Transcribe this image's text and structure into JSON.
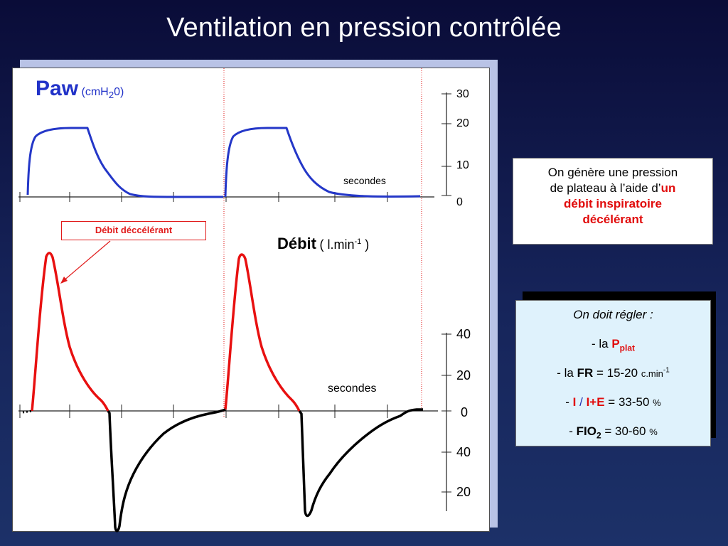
{
  "slide": {
    "title": "Ventilation en pression contrôlée"
  },
  "pressure_panel": {
    "label_main": "Paw",
    "label_unit_pre": "(cmH",
    "label_unit_sub": "2",
    "label_unit_post": "0)",
    "time_label": "secondes",
    "ticks": [
      "30",
      "20",
      "10",
      "0"
    ],
    "line_color": "#2437c8"
  },
  "flow_panel": {
    "label_main": "Débit",
    "label_unit_pre": "( l.min",
    "label_unit_sup": "-1",
    "label_unit_post": " )",
    "time_label": "secondes",
    "ticks_top": [
      "40",
      "20"
    ],
    "tick_zero": "0",
    "ticks_bottom": [
      "40",
      "20"
    ],
    "inspiratory_color": "#e81010",
    "expiratory_color": "#000000"
  },
  "callout": {
    "text": "Débit déccélérant",
    "color": "#e11b1b"
  },
  "info_box": {
    "line1": "On génère une pression",
    "line2_pre": "de plateau à l’aide d’",
    "line2_red": "un",
    "line3_red": "débit inspiratoire",
    "line4_red": "décélérant"
  },
  "settings_box": {
    "heading": "On doit régler :",
    "item1_pre": "- la ",
    "item1_var": "P",
    "item1_sub": "plat",
    "item2_pre": "- la ",
    "item2_var": "FR",
    "item2_val": " = 15-20 ",
    "item2_unit": "c.min",
    "item2_sup": "-1",
    "item3_pre": "- ",
    "item3_i": "I",
    "item3_slash": " / ",
    "item3_ie": "I+E",
    "item3_val": " = 33-50 ",
    "item3_unit": "%",
    "item4_pre": "- ",
    "item4_var": "FIO",
    "item4_sub": "2",
    "item4_val": " = 30-60 ",
    "item4_unit": "%"
  }
}
